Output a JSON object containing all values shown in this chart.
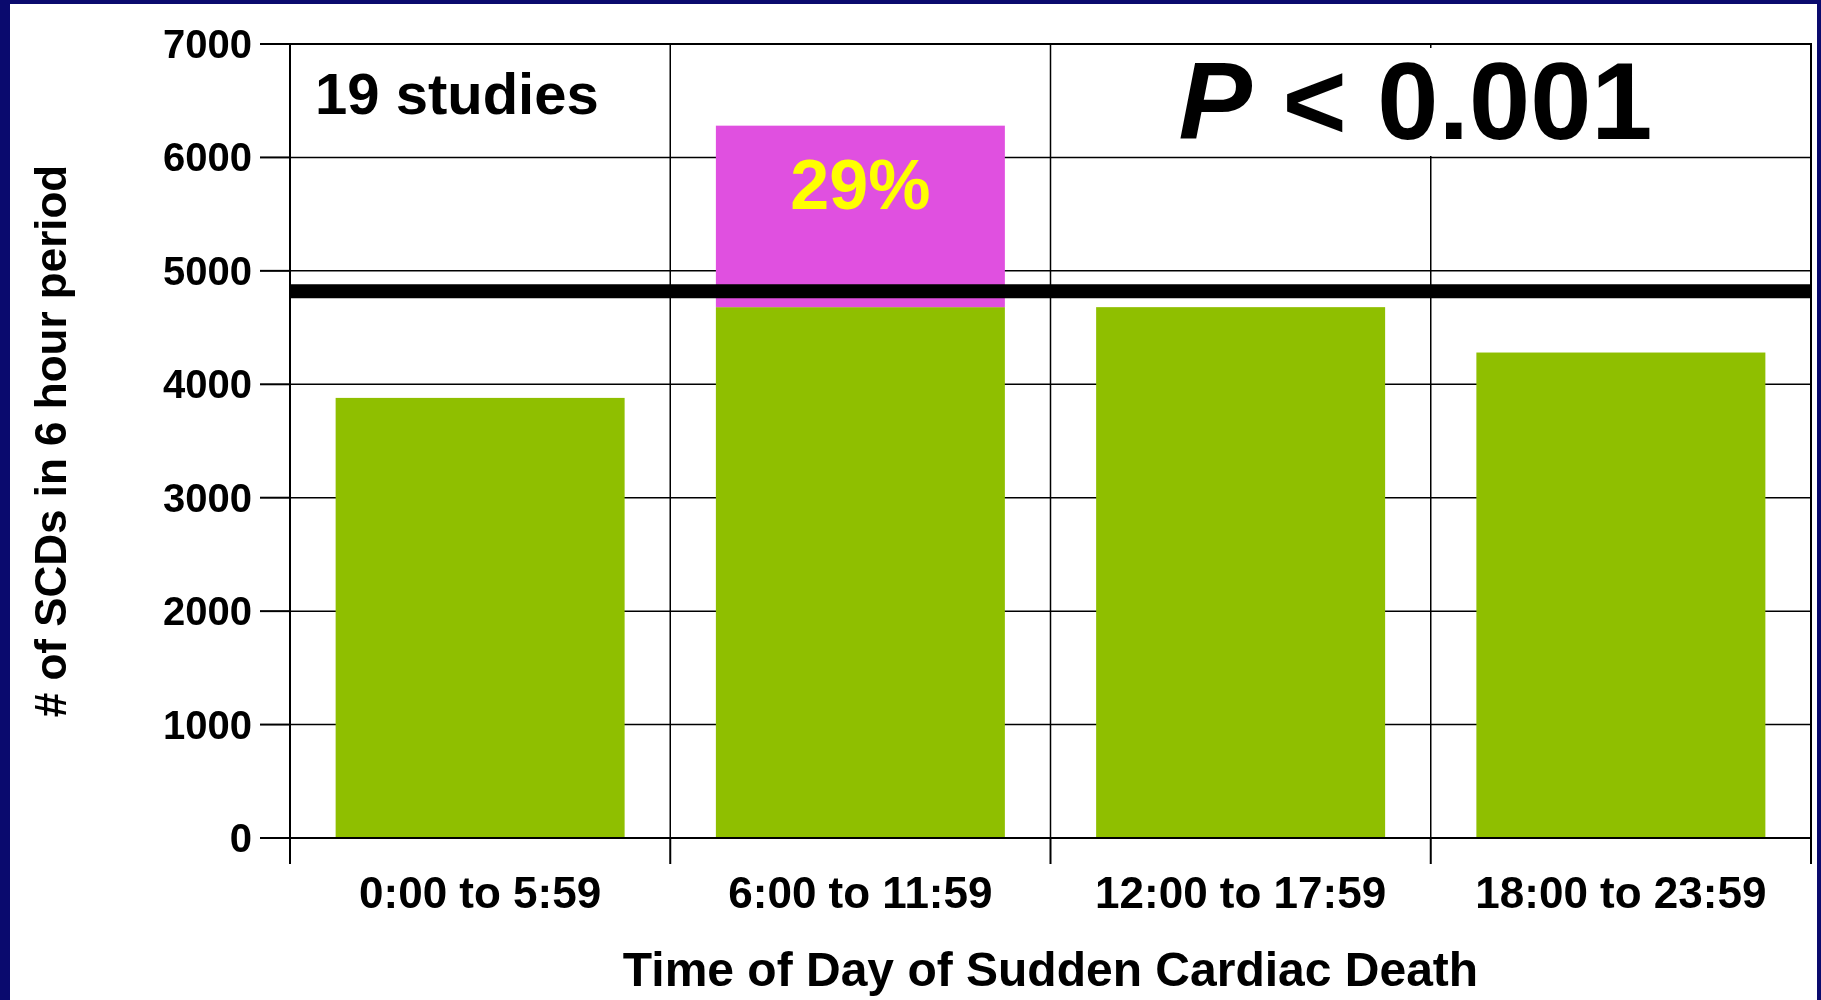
{
  "chart_data": {
    "type": "bar",
    "xlabel": "Time of Day of Sudden Cardiac Death",
    "ylabel": "# of SCDs in 6 hour period",
    "categories": [
      "0:00 to 5:59",
      "6:00 to 11:59",
      "12:00 to 17:59",
      "18:00 to 23:59"
    ],
    "stacked": true,
    "series": [
      {
        "color": "#8fbf00",
        "values": [
          3880,
          4680,
          4680,
          4280
        ]
      },
      {
        "color": "#e050e0",
        "values": [
          null,
          1600,
          null,
          null
        ]
      }
    ],
    "ylim": [
      0,
      7000
    ],
    "yticks": [
      0,
      1000,
      2000,
      3000,
      4000,
      5000,
      6000,
      7000
    ],
    "grid": true,
    "ref_lines": [
      {
        "axis": "y",
        "value": 4820,
        "color": "#000000"
      }
    ],
    "annotations": [
      "29%",
      "19 studies",
      "P < 0.001"
    ]
  }
}
